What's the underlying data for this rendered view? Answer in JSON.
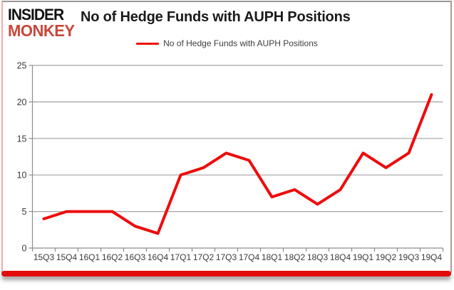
{
  "header": {
    "logo_line1": "INSIDER",
    "logo_line2": "MONKEY",
    "title": "No of Hedge Funds with AUPH Positions"
  },
  "legend": {
    "label": "No of Hedge Funds with AUPH Positions"
  },
  "colors": {
    "line_red": "#ee0c0c",
    "logo_black": "#111111",
    "logo_red": "#c9473a",
    "grid_gray": "#a3a3a3",
    "axis_gray": "#8c8c8c",
    "tick_label_gray": "#3a3a3a",
    "bottom_bar_red": "#e30c0c"
  },
  "chart_data": {
    "type": "line",
    "title": "No of Hedge Funds with AUPH Positions",
    "categories": [
      "15Q3",
      "15Q4",
      "16Q1",
      "16Q2",
      "16Q3",
      "16Q4",
      "17Q1",
      "17Q2",
      "17Q3",
      "17Q4",
      "18Q1",
      "18Q2",
      "18Q3",
      "18Q4",
      "19Q1",
      "19Q2",
      "19Q3",
      "19Q4"
    ],
    "series": [
      {
        "name": "No of Hedge Funds with AUPH Positions",
        "values": [
          4,
          5,
          5,
          5,
          3,
          2,
          10,
          11,
          13,
          12,
          7,
          8,
          6,
          8,
          13,
          11,
          13,
          21
        ]
      }
    ],
    "xlabel": "",
    "ylabel": "",
    "ylim": [
      0,
      25
    ],
    "yticks": [
      0,
      5,
      10,
      15,
      20,
      25
    ],
    "grid": true,
    "legend_position": "top-center"
  }
}
